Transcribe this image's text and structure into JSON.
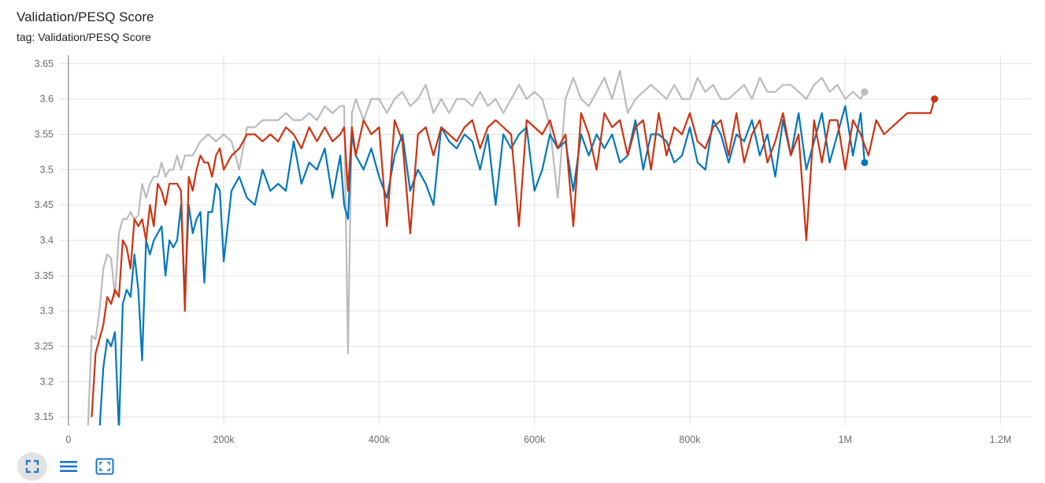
{
  "card": {
    "title": "Validation/PESQ Score",
    "tag": "tag: Validation/PESQ Score"
  },
  "toolbar": {
    "buttons": [
      {
        "name": "fullscreen-icon",
        "active": true
      },
      {
        "name": "toggle-y-log-icon",
        "active": false
      },
      {
        "name": "fit-domain-icon",
        "active": false
      }
    ]
  },
  "colors": {
    "blue": "#0077bb",
    "red": "#cc3311",
    "gray": "#bbbbbb",
    "grid": "#e0e0e0",
    "axis_zero": "#9e9e9e"
  },
  "chart_data": {
    "type": "line",
    "title": "Validation/PESQ Score",
    "xlabel": "",
    "ylabel": "",
    "xlim": [
      -12000,
      1240000
    ],
    "ylim": [
      3.138,
      3.662
    ],
    "x_ticks": [
      0,
      200000,
      400000,
      600000,
      800000,
      1000000,
      1200000
    ],
    "x_tick_labels": [
      "0",
      "200k",
      "400k",
      "600k",
      "800k",
      "1M",
      "1.2M"
    ],
    "y_ticks": [
      3.15,
      3.2,
      3.25,
      3.3,
      3.35,
      3.4,
      3.45,
      3.5,
      3.55,
      3.6,
      3.65
    ],
    "y_tick_labels": [
      "3.15",
      "3.2",
      "3.25",
      "3.3",
      "3.35",
      "3.4",
      "3.45",
      "3.5",
      "3.55",
      "3.6",
      "3.65"
    ],
    "grid": true,
    "legend": "none",
    "series": [
      {
        "color": "#bbbbbb",
        "x": [
          25000,
          30000,
          35000,
          40000,
          45000,
          50000,
          55000,
          60000,
          65000,
          70000,
          75000,
          80000,
          85000,
          90000,
          95000,
          100000,
          105000,
          110000,
          115000,
          120000,
          125000,
          130000,
          135000,
          140000,
          145000,
          150000,
          160000,
          170000,
          180000,
          190000,
          200000,
          210000,
          220000,
          230000,
          240000,
          250000,
          260000,
          270000,
          280000,
          290000,
          300000,
          310000,
          320000,
          330000,
          340000,
          350000,
          355000,
          360000,
          365000,
          370000,
          380000,
          390000,
          400000,
          410000,
          420000,
          430000,
          440000,
          450000,
          460000,
          470000,
          480000,
          490000,
          500000,
          510000,
          520000,
          530000,
          540000,
          550000,
          560000,
          570000,
          580000,
          590000,
          600000,
          610000,
          620000,
          630000,
          640000,
          650000,
          660000,
          670000,
          680000,
          690000,
          700000,
          710000,
          720000,
          730000,
          740000,
          750000,
          760000,
          770000,
          780000,
          790000,
          800000,
          810000,
          820000,
          830000,
          840000,
          850000,
          860000,
          870000,
          880000,
          890000,
          900000,
          910000,
          920000,
          930000,
          940000,
          950000,
          960000,
          970000,
          980000,
          990000,
          1000000,
          1010000,
          1020000,
          1025000
        ],
        "y": [
          3.13,
          3.265,
          3.26,
          3.3,
          3.36,
          3.38,
          3.375,
          3.32,
          3.41,
          3.43,
          3.43,
          3.44,
          3.43,
          3.435,
          3.48,
          3.46,
          3.48,
          3.49,
          3.49,
          3.51,
          3.49,
          3.5,
          3.5,
          3.52,
          3.5,
          3.52,
          3.52,
          3.54,
          3.55,
          3.54,
          3.55,
          3.54,
          3.5,
          3.56,
          3.56,
          3.57,
          3.57,
          3.57,
          3.58,
          3.57,
          3.57,
          3.58,
          3.57,
          3.59,
          3.58,
          3.59,
          3.59,
          3.24,
          3.58,
          3.6,
          3.57,
          3.6,
          3.6,
          3.58,
          3.6,
          3.61,
          3.59,
          3.6,
          3.62,
          3.58,
          3.6,
          3.58,
          3.6,
          3.6,
          3.59,
          3.61,
          3.59,
          3.6,
          3.58,
          3.6,
          3.62,
          3.6,
          3.61,
          3.6,
          3.56,
          3.46,
          3.6,
          3.63,
          3.6,
          3.59,
          3.61,
          3.63,
          3.6,
          3.64,
          3.58,
          3.6,
          3.61,
          3.62,
          3.61,
          3.6,
          3.62,
          3.6,
          3.6,
          3.63,
          3.61,
          3.62,
          3.6,
          3.6,
          3.61,
          3.62,
          3.6,
          3.63,
          3.61,
          3.61,
          3.62,
          3.62,
          3.61,
          3.6,
          3.62,
          3.63,
          3.61,
          3.62,
          3.6,
          3.61,
          3.6,
          3.61
        ]
      },
      {
        "color": "#0077bb",
        "x": [
          40000,
          45000,
          50000,
          55000,
          60000,
          65000,
          70000,
          75000,
          80000,
          85000,
          90000,
          95000,
          100000,
          105000,
          110000,
          115000,
          120000,
          125000,
          130000,
          135000,
          140000,
          145000,
          150000,
          155000,
          160000,
          165000,
          170000,
          175000,
          180000,
          185000,
          190000,
          195000,
          200000,
          210000,
          220000,
          230000,
          240000,
          250000,
          260000,
          270000,
          280000,
          290000,
          300000,
          310000,
          320000,
          330000,
          340000,
          350000,
          355000,
          360000,
          365000,
          370000,
          380000,
          390000,
          400000,
          410000,
          420000,
          430000,
          440000,
          450000,
          460000,
          470000,
          480000,
          490000,
          500000,
          510000,
          520000,
          530000,
          540000,
          550000,
          560000,
          570000,
          580000,
          590000,
          600000,
          610000,
          620000,
          630000,
          640000,
          650000,
          660000,
          670000,
          680000,
          690000,
          700000,
          710000,
          720000,
          730000,
          740000,
          750000,
          760000,
          770000,
          780000,
          790000,
          800000,
          810000,
          820000,
          830000,
          840000,
          850000,
          860000,
          870000,
          880000,
          890000,
          900000,
          910000,
          920000,
          930000,
          940000,
          950000,
          960000,
          970000,
          980000,
          990000,
          1000000,
          1010000,
          1020000,
          1025000
        ],
        "y": [
          3.13,
          3.22,
          3.26,
          3.25,
          3.27,
          3.13,
          3.31,
          3.33,
          3.32,
          3.38,
          3.33,
          3.23,
          3.4,
          3.38,
          3.4,
          3.41,
          3.42,
          3.35,
          3.4,
          3.39,
          3.4,
          3.45,
          3.32,
          3.45,
          3.41,
          3.43,
          3.44,
          3.34,
          3.44,
          3.44,
          3.48,
          3.47,
          3.37,
          3.47,
          3.49,
          3.46,
          3.45,
          3.5,
          3.47,
          3.48,
          3.47,
          3.54,
          3.48,
          3.51,
          3.5,
          3.53,
          3.46,
          3.52,
          3.45,
          3.43,
          3.55,
          3.52,
          3.5,
          3.53,
          3.49,
          3.46,
          3.52,
          3.55,
          3.47,
          3.5,
          3.48,
          3.45,
          3.56,
          3.54,
          3.53,
          3.55,
          3.54,
          3.5,
          3.55,
          3.45,
          3.55,
          3.53,
          3.55,
          3.56,
          3.47,
          3.5,
          3.55,
          3.53,
          3.54,
          3.47,
          3.55,
          3.52,
          3.55,
          3.53,
          3.55,
          3.51,
          3.52,
          3.57,
          3.5,
          3.55,
          3.55,
          3.54,
          3.51,
          3.52,
          3.56,
          3.51,
          3.5,
          3.57,
          3.55,
          3.51,
          3.55,
          3.54,
          3.57,
          3.52,
          3.55,
          3.49,
          3.57,
          3.52,
          3.58,
          3.5,
          3.54,
          3.58,
          3.51,
          3.55,
          3.59,
          3.52,
          3.58,
          3.51
        ]
      },
      {
        "color": "#cc3311",
        "x": [
          30000,
          35000,
          40000,
          45000,
          50000,
          55000,
          60000,
          65000,
          70000,
          75000,
          80000,
          85000,
          90000,
          95000,
          100000,
          105000,
          110000,
          115000,
          120000,
          125000,
          130000,
          135000,
          140000,
          145000,
          150000,
          155000,
          160000,
          165000,
          170000,
          175000,
          180000,
          185000,
          190000,
          195000,
          200000,
          210000,
          220000,
          230000,
          240000,
          250000,
          260000,
          270000,
          280000,
          290000,
          300000,
          310000,
          320000,
          330000,
          340000,
          350000,
          355000,
          360000,
          365000,
          370000,
          380000,
          390000,
          400000,
          410000,
          420000,
          430000,
          440000,
          450000,
          460000,
          470000,
          480000,
          490000,
          500000,
          510000,
          520000,
          530000,
          540000,
          550000,
          560000,
          570000,
          580000,
          590000,
          600000,
          610000,
          620000,
          630000,
          640000,
          650000,
          660000,
          670000,
          680000,
          690000,
          700000,
          710000,
          720000,
          730000,
          740000,
          750000,
          760000,
          770000,
          780000,
          790000,
          800000,
          810000,
          820000,
          830000,
          840000,
          850000,
          860000,
          870000,
          880000,
          890000,
          900000,
          910000,
          920000,
          930000,
          940000,
          950000,
          960000,
          970000,
          980000,
          990000,
          1000000,
          1010000,
          1020000,
          1030000,
          1040000,
          1050000,
          1060000,
          1070000,
          1080000,
          1090000,
          1100000,
          1110000,
          1115000
        ],
        "y": [
          3.15,
          3.24,
          3.26,
          3.28,
          3.32,
          3.31,
          3.33,
          3.32,
          3.4,
          3.39,
          3.36,
          3.43,
          3.42,
          3.43,
          3.4,
          3.45,
          3.42,
          3.48,
          3.47,
          3.45,
          3.48,
          3.48,
          3.48,
          3.47,
          3.3,
          3.49,
          3.47,
          3.5,
          3.52,
          3.51,
          3.51,
          3.49,
          3.52,
          3.53,
          3.5,
          3.52,
          3.53,
          3.55,
          3.55,
          3.54,
          3.55,
          3.54,
          3.56,
          3.55,
          3.53,
          3.56,
          3.54,
          3.56,
          3.54,
          3.55,
          3.56,
          3.47,
          3.56,
          3.52,
          3.57,
          3.55,
          3.56,
          3.42,
          3.57,
          3.54,
          3.41,
          3.55,
          3.56,
          3.52,
          3.56,
          3.55,
          3.54,
          3.56,
          3.57,
          3.53,
          3.56,
          3.57,
          3.56,
          3.55,
          3.42,
          3.57,
          3.56,
          3.55,
          3.57,
          3.53,
          3.55,
          3.42,
          3.58,
          3.55,
          3.5,
          3.58,
          3.56,
          3.57,
          3.52,
          3.56,
          3.57,
          3.5,
          3.58,
          3.52,
          3.56,
          3.55,
          3.58,
          3.54,
          3.53,
          3.56,
          3.57,
          3.52,
          3.58,
          3.51,
          3.55,
          3.57,
          3.51,
          3.54,
          3.58,
          3.52,
          3.55,
          3.4,
          3.57,
          3.51,
          3.57,
          3.57,
          3.5,
          3.57,
          3.55,
          3.52,
          3.57,
          3.55,
          3.56,
          3.57,
          3.58,
          3.58,
          3.58,
          3.58,
          3.6
        ]
      }
    ]
  }
}
